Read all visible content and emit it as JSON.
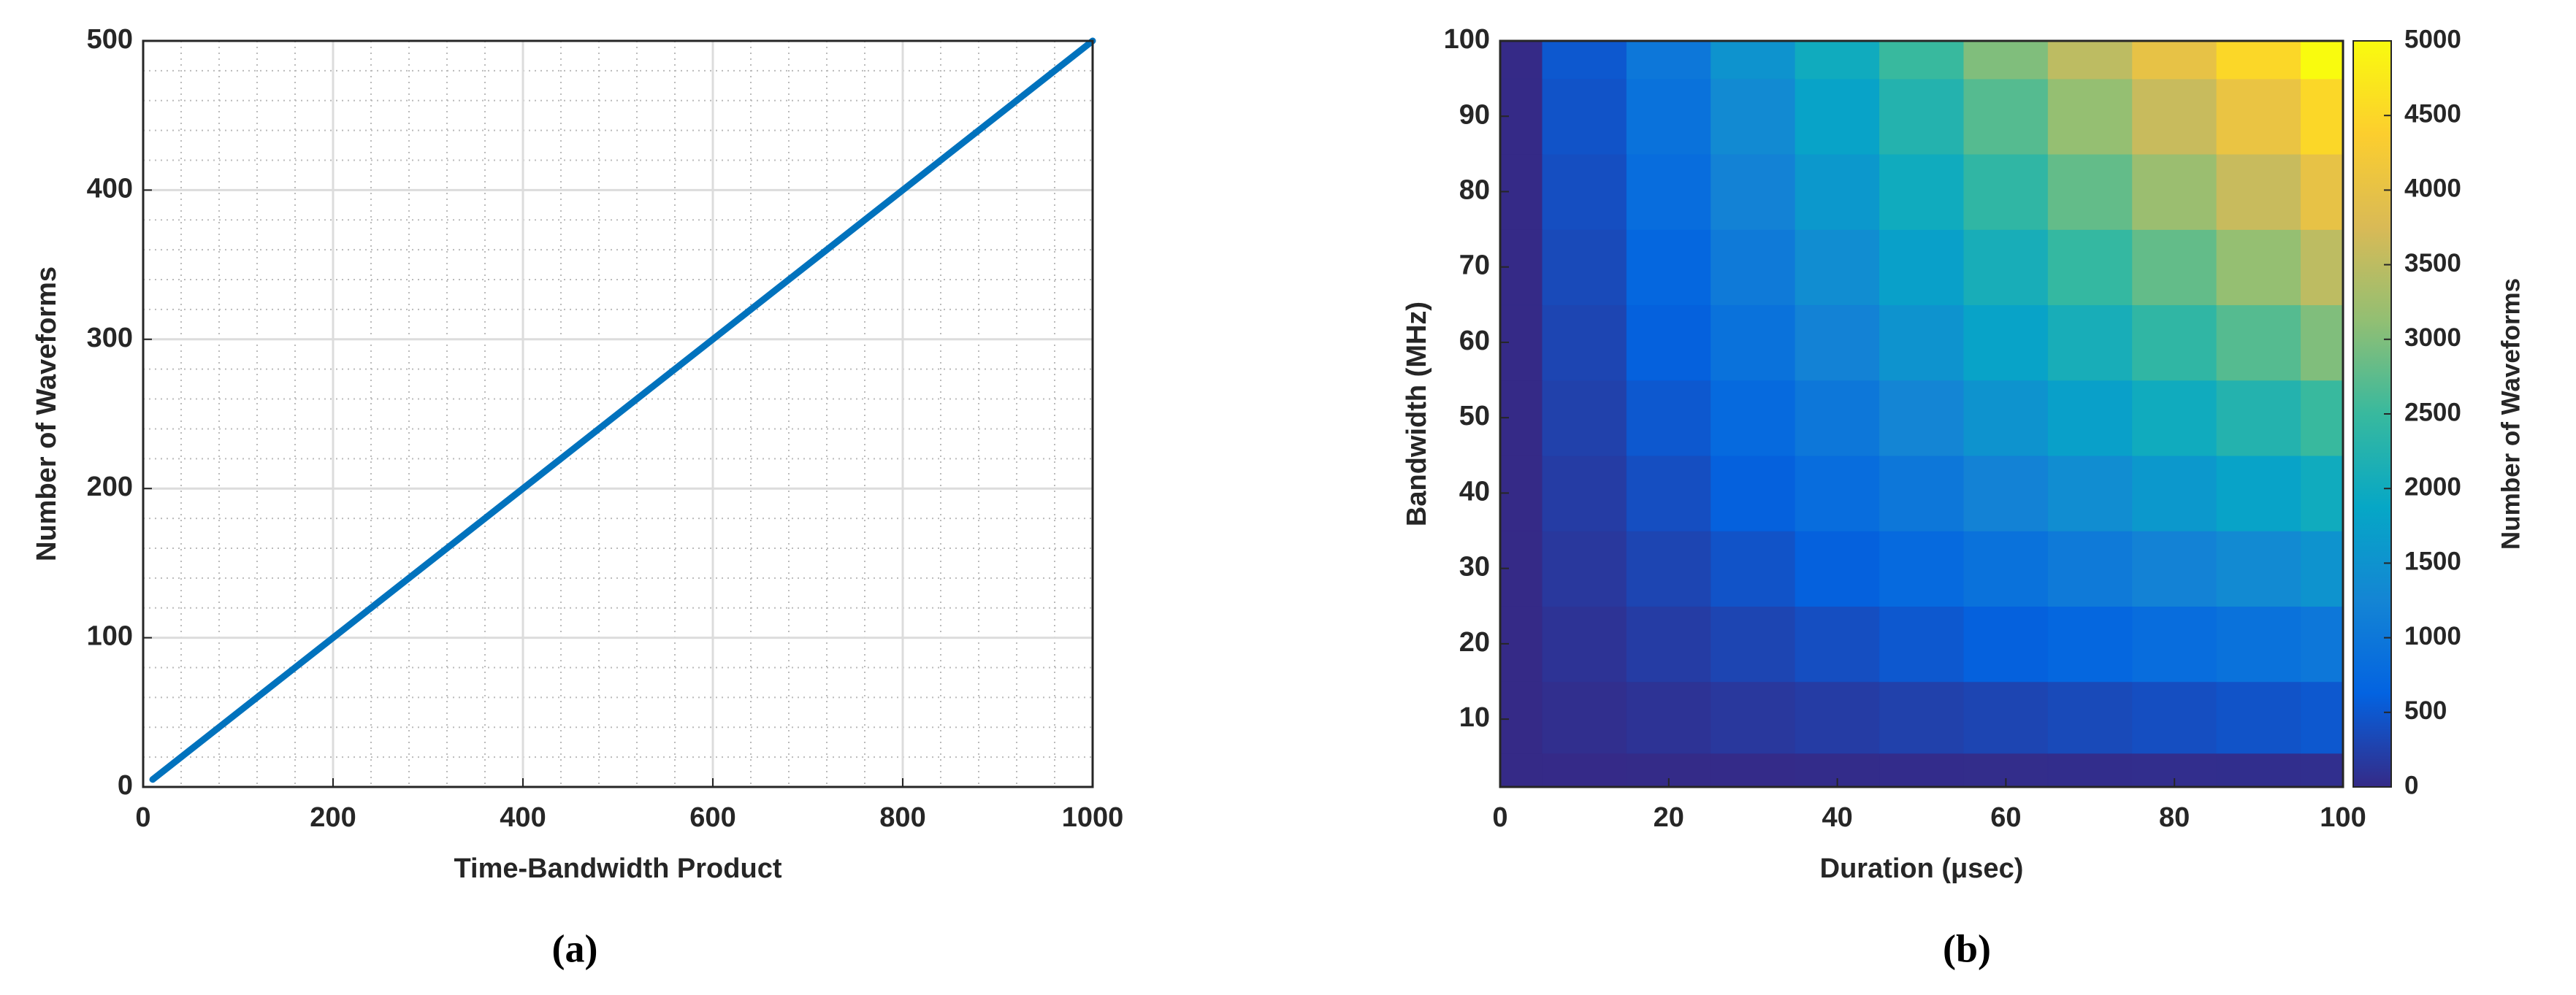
{
  "chart_data": [
    {
      "type": "line",
      "label": "(a)",
      "xlabel": "Time-Bandwidth Product",
      "ylabel": "Number of Waveforms",
      "x": [
        10,
        1000
      ],
      "series": [
        {
          "color": "#0072bd",
          "values": [
            5,
            500
          ]
        }
      ],
      "xlim": [
        0,
        1000
      ],
      "ylim": [
        0,
        500
      ],
      "xticks": [
        0,
        200,
        400,
        600,
        800,
        1000
      ],
      "yticks": [
        0,
        100,
        200,
        300,
        400,
        500
      ],
      "grid": true,
      "minor_grid": true
    },
    {
      "type": "heatmap",
      "label": "(b)",
      "xlabel": "Duration (μsec)",
      "ylabel": "Bandwidth (MHz)",
      "colorbar_label": "Number of Waveforms",
      "x": [
        0,
        10,
        20,
        30,
        40,
        50,
        60,
        70,
        80,
        90,
        100
      ],
      "y": [
        1,
        10,
        20,
        30,
        40,
        50,
        60,
        70,
        80,
        90,
        100
      ],
      "z": [
        [
          0,
          5,
          10,
          15,
          20,
          25,
          30,
          35,
          40,
          45,
          50
        ],
        [
          0,
          50,
          100,
          150,
          200,
          250,
          300,
          350,
          400,
          450,
          500
        ],
        [
          0,
          100,
          200,
          300,
          400,
          500,
          600,
          700,
          800,
          900,
          1000
        ],
        [
          0,
          150,
          300,
          450,
          600,
          750,
          900,
          1050,
          1200,
          1350,
          1500
        ],
        [
          0,
          200,
          400,
          600,
          800,
          1000,
          1200,
          1400,
          1600,
          1800,
          2000
        ],
        [
          0,
          250,
          500,
          750,
          1000,
          1250,
          1500,
          1750,
          2000,
          2250,
          2500
        ],
        [
          0,
          300,
          600,
          900,
          1200,
          1500,
          1800,
          2100,
          2400,
          2700,
          3000
        ],
        [
          0,
          350,
          700,
          1050,
          1400,
          1750,
          2100,
          2450,
          2800,
          3150,
          3500
        ],
        [
          0,
          400,
          800,
          1200,
          1600,
          2000,
          2400,
          2800,
          3200,
          3600,
          4000
        ],
        [
          0,
          450,
          900,
          1350,
          1800,
          2250,
          2700,
          3150,
          3600,
          4050,
          4500
        ],
        [
          0,
          500,
          1000,
          1500,
          2000,
          2500,
          3000,
          3500,
          4000,
          4500,
          5000
        ]
      ],
      "xlim": [
        0,
        100
      ],
      "ylim": [
        1,
        100
      ],
      "xticks": [
        0,
        20,
        40,
        60,
        80,
        100
      ],
      "yticks": [
        10,
        20,
        30,
        40,
        50,
        60,
        70,
        80,
        90,
        100
      ],
      "clim": [
        0,
        5000
      ],
      "cticks": [
        0,
        500,
        1000,
        1500,
        2000,
        2500,
        3000,
        3500,
        4000,
        4500,
        5000
      ],
      "colormap": [
        "#352a87",
        "#0363e1",
        "#1485d4",
        "#06a7c6",
        "#38b99e",
        "#92bf73",
        "#d9ba56",
        "#fcce2e",
        "#f9fb0e"
      ]
    }
  ]
}
